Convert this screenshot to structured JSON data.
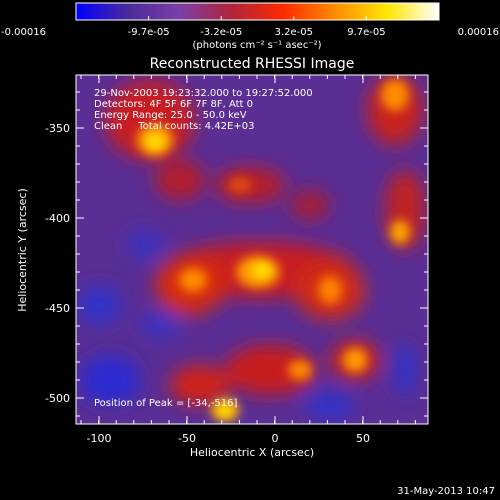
{
  "colorbar": {
    "tick_labels": [
      "-0.00016",
      "-9.7e-05",
      "-3.2e-05",
      "3.2e-05",
      "9.7e-05",
      "0.00016"
    ],
    "unit_label": "(photons cm⁻² s⁻¹ asec⁻²)",
    "colors": [
      "#0000ff",
      "#4b2a9c",
      "#7a3fa8",
      "#b0243b",
      "#ff2a00",
      "#ff8c00",
      "#ffe600",
      "#ffffff"
    ]
  },
  "image": {
    "title": "Reconstructed RHESSI Image",
    "info_lines": [
      "29-Nov-2003 19:23:32.000 to 19:27:52.000",
      "Detectors: 4F 5F 6F 7F 8F, Att 0",
      "Energy Range: 25.0 - 50.0 keV",
      "Clean     Total counts: 4.42E+03"
    ],
    "peak_text": "Position of Peak = [-34,-516]",
    "xlabel": "Heliocentric X (arcsec)",
    "ylabel": "Heliocentric Y (arcsec)",
    "x_ticks": [
      "-100",
      "-50",
      "0",
      "50"
    ],
    "y_ticks": [
      "-350",
      "-400",
      "-450",
      "-500"
    ]
  },
  "footer": {
    "timestamp": "31-May-2013 10:47"
  }
}
